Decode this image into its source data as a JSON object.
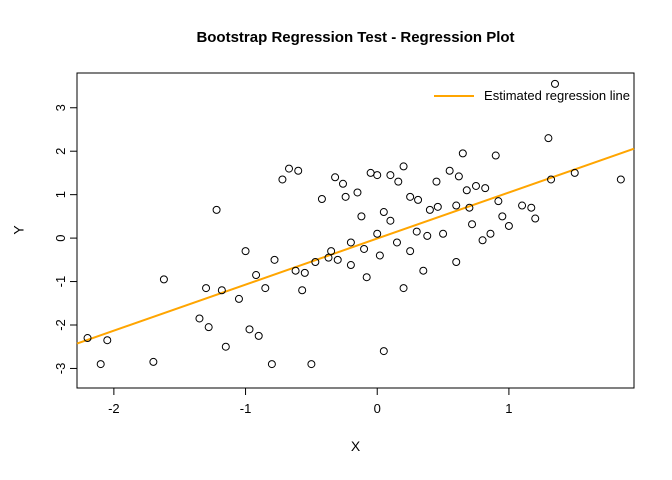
{
  "chart_data": {
    "type": "scatter",
    "title": "Bootstrap Regression Test - Regression Plot",
    "xlabel": "X",
    "ylabel": "Y",
    "xlim": [
      -2.28,
      1.95
    ],
    "ylim": [
      -3.45,
      3.8
    ],
    "x_ticks": [
      -2,
      -1,
      0,
      1
    ],
    "y_ticks": [
      -3,
      -2,
      -1,
      0,
      1,
      2,
      3
    ],
    "grid": false,
    "point_color": "#000000",
    "points": [
      [
        -2.2,
        -2.3
      ],
      [
        -2.05,
        -2.35
      ],
      [
        -2.1,
        -2.9
      ],
      [
        -1.7,
        -2.85
      ],
      [
        -1.62,
        -0.95
      ],
      [
        -1.35,
        -1.85
      ],
      [
        -1.28,
        -2.05
      ],
      [
        -1.3,
        -1.15
      ],
      [
        -1.18,
        -1.2
      ],
      [
        -1.22,
        0.65
      ],
      [
        -1.15,
        -2.5
      ],
      [
        -1.05,
        -1.4
      ],
      [
        -1.0,
        -0.3
      ],
      [
        -0.97,
        -2.1
      ],
      [
        -0.9,
        -2.25
      ],
      [
        -0.92,
        -0.85
      ],
      [
        -0.85,
        -1.15
      ],
      [
        -0.8,
        -2.9
      ],
      [
        -0.78,
        -0.5
      ],
      [
        -0.72,
        1.35
      ],
      [
        -0.67,
        1.6
      ],
      [
        -0.6,
        1.55
      ],
      [
        -0.62,
        -0.75
      ],
      [
        -0.55,
        -0.8
      ],
      [
        -0.57,
        -1.2
      ],
      [
        -0.5,
        -2.9
      ],
      [
        -0.47,
        -0.55
      ],
      [
        -0.42,
        0.9
      ],
      [
        -0.37,
        -0.45
      ],
      [
        -0.35,
        -0.3
      ],
      [
        -0.3,
        -0.5
      ],
      [
        -0.32,
        1.4
      ],
      [
        -0.26,
        1.25
      ],
      [
        -0.24,
        0.95
      ],
      [
        -0.2,
        -0.1
      ],
      [
        -0.2,
        -0.62
      ],
      [
        -0.15,
        1.05
      ],
      [
        -0.12,
        0.5
      ],
      [
        -0.1,
        -0.25
      ],
      [
        -0.08,
        -0.9
      ],
      [
        -0.05,
        1.5
      ],
      [
        0.0,
        1.45
      ],
      [
        0.0,
        0.1
      ],
      [
        0.02,
        -0.4
      ],
      [
        0.05,
        -2.6
      ],
      [
        0.05,
        0.6
      ],
      [
        0.1,
        1.45
      ],
      [
        0.16,
        1.3
      ],
      [
        0.1,
        0.4
      ],
      [
        0.15,
        -0.1
      ],
      [
        0.2,
        -1.15
      ],
      [
        0.2,
        1.65
      ],
      [
        0.25,
        0.95
      ],
      [
        0.25,
        -0.3
      ],
      [
        0.31,
        0.88
      ],
      [
        0.3,
        0.15
      ],
      [
        0.35,
        -0.75
      ],
      [
        0.38,
        0.05
      ],
      [
        0.4,
        0.65
      ],
      [
        0.46,
        0.72
      ],
      [
        0.45,
        1.3
      ],
      [
        0.5,
        0.1
      ],
      [
        0.55,
        1.55
      ],
      [
        0.62,
        1.42
      ],
      [
        0.6,
        0.75
      ],
      [
        0.6,
        -0.55
      ],
      [
        0.65,
        1.95
      ],
      [
        0.68,
        1.1
      ],
      [
        0.7,
        0.7
      ],
      [
        0.72,
        0.32
      ],
      [
        0.75,
        1.2
      ],
      [
        0.82,
        1.15
      ],
      [
        0.8,
        -0.05
      ],
      [
        0.86,
        0.1
      ],
      [
        0.9,
        1.9
      ],
      [
        0.92,
        0.85
      ],
      [
        0.95,
        0.5
      ],
      [
        1.0,
        0.28
      ],
      [
        1.1,
        0.75
      ],
      [
        1.17,
        0.7
      ],
      [
        1.2,
        0.45
      ],
      [
        1.3,
        2.3
      ],
      [
        1.32,
        1.35
      ],
      [
        1.35,
        3.55
      ],
      [
        1.5,
        1.5
      ],
      [
        1.85,
        1.35
      ]
    ],
    "regression_line": {
      "slope": 1.06,
      "intercept": -0.01,
      "color": "#FFA500",
      "width": 2
    },
    "legend": {
      "label": "Estimated regression line",
      "line_color": "#FFA500",
      "position": "topright"
    }
  }
}
